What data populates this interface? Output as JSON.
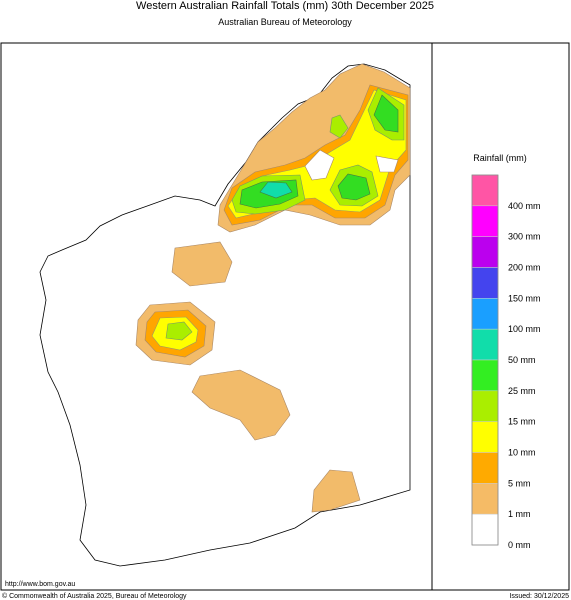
{
  "header": {
    "title": "Western Australian Rainfall Totals (mm) 30th December 2025",
    "subtitle": "Australian Bureau of Meteorology"
  },
  "legend": {
    "title": "Rainfall (mm)",
    "items": [
      {
        "label": "400 mm",
        "color": "#ff55a5"
      },
      {
        "label": "300 mm",
        "color": "#ff00ff"
      },
      {
        "label": "200 mm",
        "color": "#bb00ee"
      },
      {
        "label": "150 mm",
        "color": "#4444ee"
      },
      {
        "label": "100 mm",
        "color": "#1a9fff"
      },
      {
        "label": "50 mm",
        "color": "#11ddaa"
      },
      {
        "label": "25 mm",
        "color": "#33ee22"
      },
      {
        "label": "15 mm",
        "color": "#aaee00"
      },
      {
        "label": "10 mm",
        "color": "#ffff00"
      },
      {
        "label": "5 mm",
        "color": "#ffaa00"
      },
      {
        "label": "1 mm",
        "color": "#f5bb66"
      },
      {
        "label": "0 mm",
        "color": "#ffffff"
      }
    ]
  },
  "footer": {
    "url": "http://www.bom.gov.au",
    "copyright": "© Commonwealth of Australia 2025, Bureau of Meteorology",
    "issued": "Issued: 30/12/2025"
  }
}
